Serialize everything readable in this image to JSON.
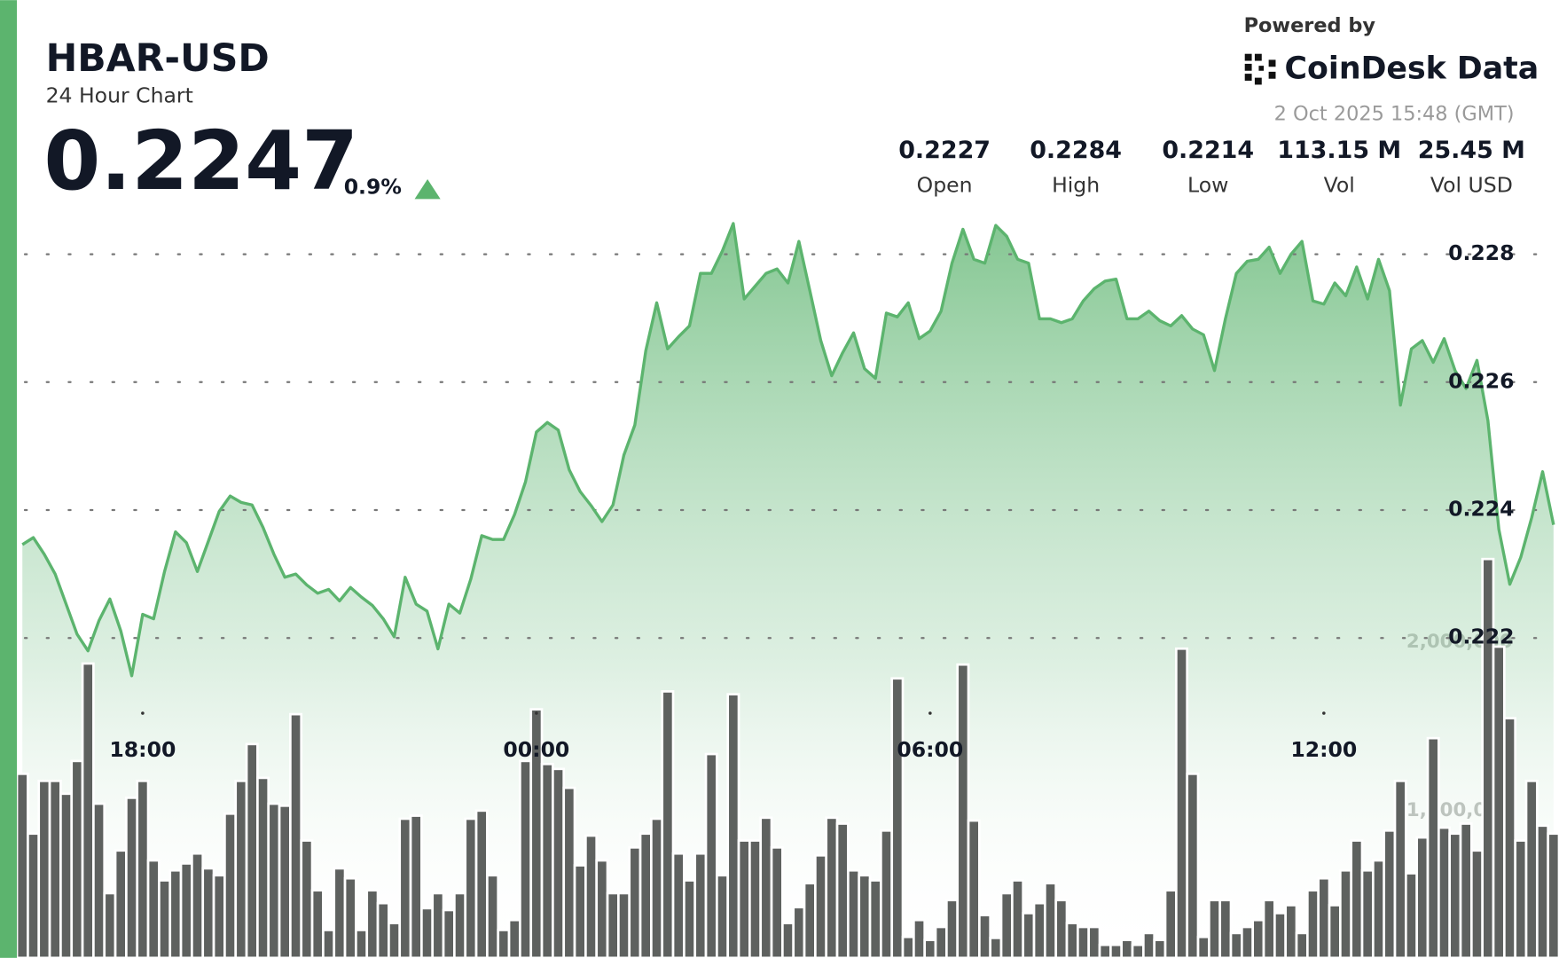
{
  "header": {
    "title": "HBAR-USD",
    "subtitle": "24 Hour Chart",
    "price": "0.2247",
    "change": "0.9%",
    "powered_by": "Powered by",
    "brand": "CoinDesk Data",
    "timestamp": "2 Oct 2025 15:48 (GMT)"
  },
  "stats": [
    {
      "value": "0.2227",
      "label": "Open"
    },
    {
      "value": "0.2284",
      "label": "High"
    },
    {
      "value": "0.2214",
      "label": "Low"
    },
    {
      "value": "113.15 M",
      "label": "Vol"
    },
    {
      "value": "25.45 M",
      "label": "Vol USD"
    }
  ],
  "chart_data": {
    "type": "line",
    "categories": [
      null,
      null,
      null,
      null,
      null,
      null,
      null,
      null,
      null,
      null,
      null,
      "18:00",
      null,
      null,
      null,
      null,
      null,
      null,
      null,
      null,
      null,
      null,
      null,
      null,
      null,
      null,
      null,
      null,
      null,
      null,
      null,
      null,
      null,
      null,
      null,
      null,
      null,
      null,
      null,
      null,
      null,
      null,
      null,
      null,
      null,
      null,
      null,
      "00:00",
      null,
      null,
      null,
      null,
      null,
      null,
      null,
      null,
      null,
      null,
      null,
      null,
      null,
      null,
      null,
      null,
      null,
      null,
      null,
      null,
      null,
      null,
      null,
      null,
      null,
      null,
      null,
      null,
      null,
      null,
      null,
      null,
      null,
      null,
      null,
      "06:00",
      null,
      null,
      null,
      null,
      null,
      null,
      null,
      null,
      null,
      null,
      null,
      null,
      null,
      null,
      null,
      null,
      null,
      null,
      null,
      null,
      null,
      null,
      null,
      null,
      null,
      null,
      null,
      null,
      null,
      null,
      null,
      null,
      null,
      null,
      null,
      "12:00",
      null,
      null,
      null,
      null,
      null,
      null,
      null,
      null,
      null,
      null,
      null,
      null,
      null,
      null,
      null,
      null,
      null,
      null,
      null,
      null,
      null
    ],
    "series": [
      {
        "type": "line",
        "color": "#5cb46e",
        "values": [
          0.22346,
          0.22357,
          0.22331,
          0.223,
          0.22253,
          0.22206,
          0.2218,
          0.22227,
          0.22261,
          0.22211,
          0.22141,
          0.22237,
          0.2223,
          0.22304,
          0.22366,
          0.22349,
          0.22304,
          0.22351,
          0.22398,
          0.22422,
          0.22412,
          0.22408,
          0.22373,
          0.22331,
          0.22295,
          0.223,
          0.22283,
          0.2227,
          0.22276,
          0.22258,
          0.22279,
          0.22264,
          0.22251,
          0.2223,
          0.22202,
          0.22295,
          0.22253,
          0.22242,
          0.22183,
          0.22253,
          0.22239,
          0.22292,
          0.2236,
          0.22354,
          0.22354,
          0.22393,
          0.22444,
          0.22522,
          0.22537,
          0.22525,
          0.22463,
          0.22429,
          0.22407,
          0.22382,
          0.22408,
          0.22486,
          0.22533,
          0.22649,
          0.22724,
          0.22652,
          0.22671,
          0.22688,
          0.2277,
          0.2277,
          0.22805,
          0.22848,
          0.2273,
          0.2275,
          0.2277,
          0.22777,
          0.22755,
          0.2282,
          0.22743,
          0.22665,
          0.2261,
          0.22646,
          0.22677,
          0.22621,
          0.22606,
          0.22708,
          0.22702,
          0.22724,
          0.22668,
          0.2268,
          0.22711,
          0.22786,
          0.22839,
          0.22792,
          0.22786,
          0.22845,
          0.22828,
          0.22792,
          0.22786,
          0.22699,
          0.22699,
          0.22693,
          0.22699,
          0.22727,
          0.22746,
          0.22758,
          0.22761,
          0.22699,
          0.22699,
          0.22711,
          0.22696,
          0.22688,
          0.22704,
          0.22683,
          0.22674,
          0.22618,
          0.22699,
          0.2277,
          0.22789,
          0.22792,
          0.22811,
          0.2277,
          0.228,
          0.2282,
          0.22727,
          0.22722,
          0.22755,
          0.22735,
          0.2278,
          0.2273,
          0.22792,
          0.22743,
          0.22564,
          0.22652,
          0.22665,
          0.22631,
          0.22668,
          0.22618,
          0.2259,
          0.22634,
          0.2254,
          0.2237,
          0.22284,
          0.22326,
          0.22388,
          0.2246,
          0.22377
        ]
      },
      {
        "type": "bar",
        "axis": "y2",
        "color": "#5e615f",
        "values": [
          1220000,
          866000,
          1178000,
          1178000,
          1102000,
          1296000,
          1873000,
          1043000,
          513000,
          766000,
          1078000,
          1178000,
          707000,
          589000,
          648000,
          689000,
          748000,
          660000,
          619000,
          984000,
          1178000,
          1396000,
          1196000,
          1043000,
          1031000,
          1573000,
          825000,
          530000,
          295000,
          660000,
          601000,
          295000,
          530000,
          454000,
          336000,
          954000,
          972000,
          424000,
          513000,
          413000,
          513000,
          954000,
          1002000,
          619000,
          295000,
          354000,
          1296000,
          1602000,
          1278000,
          1249000,
          1137000,
          678000,
          854000,
          707000,
          513000,
          513000,
          784000,
          866000,
          954000,
          1708000,
          748000,
          589000,
          748000,
          1337000,
          619000,
          1691000,
          825000,
          825000,
          960000,
          784000,
          336000,
          430000,
          572000,
          737000,
          960000,
          925000,
          648000,
          619000,
          589000,
          884000,
          1785000,
          254000,
          354000,
          236000,
          313000,
          472000,
          1867000,
          943000,
          383000,
          248000,
          513000,
          589000,
          395000,
          454000,
          572000,
          472000,
          336000,
          313000,
          313000,
          207000,
          207000,
          236000,
          207000,
          277000,
          236000,
          530000,
          1961000,
          1220000,
          254000,
          472000,
          472000,
          277000,
          313000,
          354000,
          472000,
          395000,
          442000,
          277000,
          530000,
          601000,
          442000,
          648000,
          825000,
          648000,
          707000,
          884000,
          1178000,
          631000,
          843000,
          1431000,
          901000,
          866000,
          925000,
          766000,
          2492000,
          1973000,
          1549000,
          825000,
          1178000,
          913000,
          866000
        ]
      }
    ],
    "ylim": [
      0.217,
      0.2288
    ],
    "yticks": [
      0.222,
      0.224,
      0.226,
      0.228
    ],
    "y2lim": [
      130000,
      4600000
    ],
    "y2ticks": [
      {
        "value": 1000000,
        "label": "1,000,000"
      },
      {
        "value": 2000000,
        "label": "2,000,000"
      }
    ],
    "grid": true
  }
}
